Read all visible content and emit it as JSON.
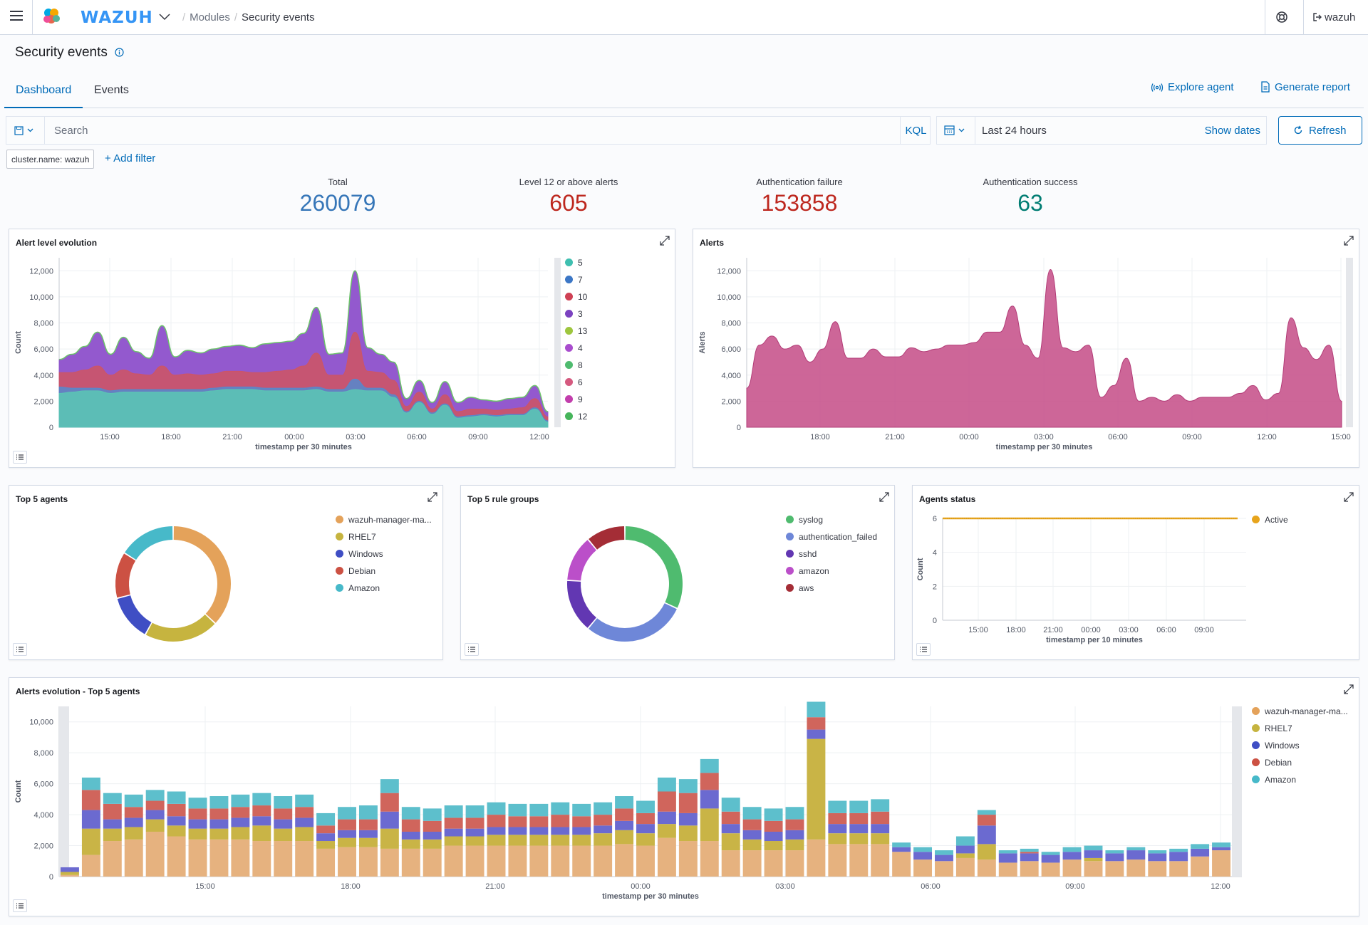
{
  "header": {
    "brand": "WAZUH",
    "crumbs": [
      "Modules",
      "Security events"
    ],
    "user": "wazuh",
    "icons": [
      "menu-icon",
      "logo-icon",
      "chevron-down-icon",
      "help-icon",
      "logout-icon"
    ]
  },
  "page": {
    "title": "Security events",
    "tabs": [
      "Dashboard",
      "Events"
    ],
    "explore_agent": "Explore agent",
    "generate_report": "Generate report"
  },
  "search": {
    "placeholder": "Search",
    "kql": "KQL",
    "time_range": "Last 24 hours",
    "show_dates": "Show dates",
    "refresh": "Refresh",
    "filter": "cluster.name: wazuh",
    "add_filter": "+ Add filter"
  },
  "metrics": [
    {
      "label": "Total",
      "value": "260079",
      "color": "#3676b8"
    },
    {
      "label": "Level 12 or above alerts",
      "value": "605",
      "color": "#bd271e"
    },
    {
      "label": "Authentication failure",
      "value": "153858",
      "color": "#bd271e"
    },
    {
      "label": "Authentication success",
      "value": "63",
      "color": "#017d73"
    }
  ],
  "panels": {
    "alert_level": "Alert level evolution",
    "alerts": "Alerts",
    "top_agents": "Top 5 agents",
    "top_groups": "Top 5 rule groups",
    "agents_status": "Agents status",
    "alerts_evolution": "Alerts evolution - Top 5 agents"
  },
  "chart_data": [
    {
      "type": "area",
      "title": "Alert level evolution",
      "xlabel": "timestamp per 30 minutes",
      "ylabel": "Count",
      "ylim": [
        0,
        13000
      ],
      "yticks": [
        "0",
        "2,000",
        "4,000",
        "6,000",
        "8,000",
        "10,000",
        "12,000"
      ],
      "xticks": [
        "15:00",
        "18:00",
        "21:00",
        "00:00",
        "03:00",
        "06:00",
        "09:00",
        "12:00"
      ],
      "legend": [
        "5",
        "7",
        "10",
        "3",
        "13",
        "4",
        "8",
        "6",
        "9",
        "12"
      ],
      "colors": [
        "#54b399",
        "#6092c0",
        "#d36086",
        "#9170b8",
        "#ca8eae",
        "#d6bf57",
        "#b9a888",
        "#da8b45",
        "#aa6556",
        "#e7664c"
      ],
      "total": [
        5200,
        5600,
        6200,
        7300,
        5600,
        6900,
        5800,
        5300,
        7800,
        5400,
        5900,
        5700,
        6000,
        6200,
        6300,
        6100,
        6400,
        6500,
        6600,
        7200,
        9200,
        5600,
        5700,
        12000,
        6100,
        5600,
        5000,
        2200,
        3600,
        1900,
        3500,
        1900,
        2300,
        2100,
        2000,
        2200,
        2300,
        3200,
        1200
      ],
      "series": [
        {
          "name": "5",
          "values": [
            2600,
            2700,
            2800,
            2800,
            2600,
            2700,
            2700,
            2700,
            2700,
            2700,
            2700,
            2700,
            2800,
            2900,
            2900,
            2900,
            2800,
            2800,
            2800,
            2800,
            2900,
            2700,
            2700,
            2900,
            2800,
            2800,
            2300,
            1100,
            1900,
            1000,
            1700,
            700,
            800,
            900,
            800,
            900,
            900,
            1400,
            400
          ]
        },
        {
          "name": "7",
          "values": [
            500,
            300,
            200,
            200,
            200,
            200,
            200,
            200,
            200,
            200,
            200,
            200,
            200,
            200,
            200,
            200,
            200,
            200,
            200,
            200,
            200,
            200,
            200,
            800,
            200,
            200,
            200,
            100,
            100,
            100,
            100,
            100,
            100,
            100,
            100,
            100,
            100,
            100,
            100
          ]
        },
        {
          "name": "10",
          "values": [
            1100,
            1200,
            1400,
            1700,
            1200,
            1500,
            1200,
            1100,
            1800,
            1100,
            1200,
            1100,
            1100,
            1200,
            1200,
            1100,
            1200,
            1300,
            1400,
            1700,
            2600,
            1100,
            1100,
            3600,
            1300,
            1200,
            1100,
            400,
            700,
            300,
            700,
            400,
            500,
            400,
            400,
            400,
            500,
            700,
            300
          ]
        },
        {
          "name": "3",
          "values": [
            1000,
            1400,
            1800,
            2600,
            1600,
            2500,
            1700,
            1300,
            3100,
            1400,
            1800,
            1700,
            1900,
            1900,
            2000,
            1900,
            2200,
            2200,
            2200,
            2500,
            3500,
            1600,
            1700,
            4700,
            1800,
            1400,
            1400,
            600,
            900,
            500,
            1000,
            700,
            900,
            700,
            700,
            800,
            800,
            1000,
            400
          ]
        }
      ]
    },
    {
      "type": "area",
      "title": "Alerts",
      "xlabel": "timestamp per 30 minutes",
      "ylabel": "Alerts",
      "ylim": [
        0,
        13000
      ],
      "yticks": [
        "0",
        "2,000",
        "4,000",
        "6,000",
        "8,000",
        "10,000",
        "12,000"
      ],
      "xticks": [
        "18:00",
        "21:00",
        "00:00",
        "03:00",
        "06:00",
        "09:00",
        "12:00",
        "15:00"
      ],
      "color": "#c44b86",
      "values": [
        3000,
        6300,
        7000,
        6000,
        6300,
        5000,
        6000,
        8100,
        5300,
        5300,
        6000,
        5400,
        5400,
        6100,
        5800,
        6000,
        6300,
        6300,
        6500,
        7300,
        7300,
        9300,
        6300,
        5300,
        12100,
        6100,
        5800,
        6300,
        2300,
        3200,
        5300,
        2000,
        2300,
        2000,
        2500,
        2000,
        2300,
        2300,
        2300,
        2600,
        3200,
        2100,
        2600,
        8400,
        6100,
        5200,
        6300,
        2000
      ]
    },
    {
      "type": "pie",
      "title": "Top 5 agents",
      "categories": [
        "wazuh-manager-ma...",
        "RHEL7",
        "Windows",
        "Debian",
        "Amazon"
      ],
      "values": [
        37,
        21,
        13,
        13,
        16
      ],
      "colors": [
        "#e4a25a",
        "#c6b43f",
        "#3f4ec4",
        "#cc5143",
        "#47b9c9"
      ]
    },
    {
      "type": "pie",
      "title": "Top 5 rule groups",
      "categories": [
        "syslog",
        "authentication_failed",
        "sshd",
        "amazon",
        "aws"
      ],
      "values": [
        32,
        29,
        15,
        13,
        11
      ],
      "colors": [
        "#4fbb6f",
        "#6e87d8",
        "#6237b2",
        "#bb4fc9",
        "#a42d36"
      ]
    },
    {
      "type": "line",
      "title": "Agents status",
      "xlabel": "timestamp per 10 minutes",
      "ylabel": "Count",
      "ylim": [
        0,
        6
      ],
      "yticks": [
        "0",
        "2",
        "4",
        "6"
      ],
      "xticks": [
        "15:00",
        "18:00",
        "21:00",
        "00:00",
        "03:00",
        "06:00",
        "09:00"
      ],
      "series": [
        {
          "name": "Active",
          "value": 6,
          "color": "#e7a41c"
        }
      ]
    },
    {
      "type": "bar",
      "title": "Alerts evolution - Top 5 agents",
      "xlabel": "timestamp per 30 minutes",
      "ylabel": "Count",
      "ylim": [
        0,
        11000
      ],
      "yticks": [
        "0",
        "2,000",
        "4,000",
        "6,000",
        "8,000",
        "10,000"
      ],
      "xticks": [
        "15:00",
        "18:00",
        "21:00",
        "00:00",
        "03:00",
        "06:00",
        "09:00",
        "12:00"
      ],
      "colors": [
        "#e6b27f",
        "#c9b446",
        "#6b6ad0",
        "#d0655c",
        "#5dbfcc"
      ],
      "series": [
        {
          "name": "wazuh-manager-ma...",
          "values": [
            100,
            1400,
            2300,
            2400,
            2900,
            2600,
            2400,
            2400,
            2400,
            2300,
            2300,
            2300,
            1800,
            1900,
            1900,
            1800,
            1800,
            1800,
            2000,
            2000,
            2000,
            2000,
            2000,
            2000,
            2000,
            2000,
            2100,
            2000,
            2500,
            2300,
            2300,
            1700,
            1700,
            1700,
            1700,
            2400,
            2100,
            2100,
            2100,
            1600,
            1100,
            1000,
            1200,
            1100,
            900,
            1000,
            900,
            1100,
            1000,
            1000,
            1100,
            1000,
            1000,
            1300,
            1700
          ]
        },
        {
          "name": "RHEL7",
          "values": [
            200,
            1700,
            800,
            800,
            800,
            700,
            700,
            700,
            800,
            1000,
            800,
            900,
            500,
            600,
            600,
            1300,
            600,
            600,
            600,
            600,
            700,
            700,
            700,
            700,
            700,
            800,
            900,
            800,
            900,
            1000,
            2100,
            1100,
            700,
            600,
            700,
            6500,
            700,
            700,
            700,
            0,
            0,
            0,
            300,
            1000,
            0,
            0,
            0,
            0,
            200,
            0,
            0,
            0,
            0,
            0,
            0
          ]
        },
        {
          "name": "Windows",
          "values": [
            300,
            1200,
            600,
            600,
            600,
            600,
            600,
            600,
            600,
            600,
            600,
            600,
            500,
            500,
            500,
            1100,
            500,
            500,
            500,
            500,
            500,
            500,
            500,
            500,
            500,
            500,
            600,
            600,
            800,
            800,
            1200,
            600,
            600,
            600,
            600,
            600,
            600,
            600,
            600,
            300,
            500,
            400,
            500,
            1200,
            600,
            500,
            500,
            500,
            500,
            500,
            600,
            500,
            600,
            500,
            200
          ]
        },
        {
          "name": "Debian",
          "values": [
            0,
            1300,
            1000,
            700,
            600,
            800,
            700,
            700,
            700,
            700,
            700,
            700,
            500,
            700,
            700,
            1200,
            800,
            700,
            700,
            700,
            800,
            700,
            700,
            800,
            700,
            700,
            800,
            700,
            1300,
            1300,
            1100,
            800,
            700,
            700,
            700,
            800,
            700,
            700,
            800,
            0,
            0,
            0,
            0,
            700,
            0,
            100,
            0,
            0,
            0,
            0,
            0,
            0,
            0,
            0,
            0
          ]
        },
        {
          "name": "Amazon",
          "values": [
            0,
            800,
            700,
            800,
            700,
            800,
            700,
            800,
            800,
            800,
            800,
            800,
            800,
            800,
            900,
            900,
            800,
            800,
            800,
            800,
            800,
            800,
            800,
            800,
            800,
            800,
            800,
            800,
            900,
            900,
            900,
            900,
            800,
            800,
            800,
            1000,
            800,
            800,
            800,
            300,
            300,
            300,
            600,
            300,
            200,
            200,
            200,
            300,
            300,
            200,
            200,
            200,
            200,
            300,
            300
          ]
        }
      ]
    }
  ]
}
